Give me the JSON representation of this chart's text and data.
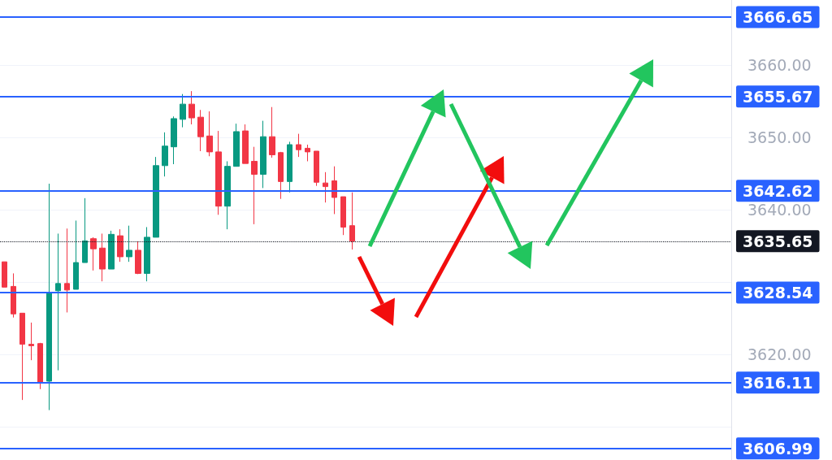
{
  "chart_data": {
    "type": "candlestick",
    "categories": [
      null,
      null,
      null,
      null,
      null,
      null,
      null,
      null,
      null,
      null,
      null,
      null,
      null,
      null,
      null,
      null,
      null,
      null,
      null,
      null,
      null,
      null,
      null,
      null,
      null,
      null,
      null,
      null,
      null,
      null,
      null,
      null,
      null,
      null,
      null,
      null,
      null,
      null,
      null,
      null,
      null,
      null,
      null,
      null,
      null,
      null,
      null,
      null,
      null,
      null,
      null,
      null,
      null,
      null,
      null,
      null,
      null,
      null,
      null,
      null,
      null,
      null,
      null,
      null,
      null,
      null,
      null,
      null,
      null,
      null,
      null,
      null,
      null,
      null,
      null,
      null,
      null,
      null,
      null,
      null,
      null,
      null
    ],
    "ohlc": [
      [
        3632.8,
        3632.8,
        3629.3,
        3629.3
      ],
      [
        3629.4,
        3631.2,
        3625.1,
        3625.6
      ],
      [
        3625.7,
        3625.7,
        3613.7,
        3621.4
      ],
      [
        3621.4,
        3624.4,
        3619.2,
        3621.2
      ],
      [
        3621.5,
        3621.6,
        3615.2,
        3616.1
      ],
      [
        3616.3,
        3643.6,
        3612.3,
        3628.5
      ],
      [
        3628.8,
        3636.7,
        3617.8,
        3629.8
      ],
      [
        3629.8,
        3637.4,
        3625.8,
        3628.9
      ],
      [
        3629.0,
        3638.5,
        3629.0,
        3632.7
      ],
      [
        3632.7,
        3641.6,
        3632.7,
        3635.7
      ],
      [
        3636.0,
        3636.2,
        3631.6,
        3634.6
      ],
      [
        3634.7,
        3636.7,
        3630.1,
        3631.8
      ],
      [
        3631.8,
        3637.1,
        3631.8,
        3636.6
      ],
      [
        3636.4,
        3637.3,
        3632.8,
        3633.5
      ],
      [
        3633.5,
        3637.8,
        3632.8,
        3634.4
      ],
      [
        3634.4,
        3635.6,
        3631.1,
        3631.2
      ],
      [
        3631.2,
        3637.6,
        3630.1,
        3636.2
      ],
      [
        3636.2,
        3647.3,
        3636.2,
        3646.1
      ],
      [
        3646.1,
        3650.7,
        3644.6,
        3648.8
      ],
      [
        3648.7,
        3652.9,
        3646.3,
        3652.6
      ],
      [
        3652.5,
        3656.0,
        3651.4,
        3654.6
      ],
      [
        3654.6,
        3656.4,
        3651.8,
        3652.7
      ],
      [
        3652.8,
        3653.8,
        3648.1,
        3650.1
      ],
      [
        3650.2,
        3653.6,
        3647.4,
        3648.0
      ],
      [
        3648.0,
        3650.9,
        3639.3,
        3640.5
      ],
      [
        3640.5,
        3646.7,
        3637.3,
        3646.0
      ],
      [
        3646.0,
        3651.9,
        3646.0,
        3650.8
      ],
      [
        3650.9,
        3651.8,
        3646.4,
        3646.4
      ],
      [
        3646.7,
        3648.7,
        3638.0,
        3644.9
      ],
      [
        3644.9,
        3652.3,
        3643.0,
        3650.1
      ],
      [
        3650.1,
        3654.2,
        3647.2,
        3647.6
      ],
      [
        3647.9,
        3648.0,
        3641.5,
        3643.9
      ],
      [
        3643.9,
        3649.4,
        3642.4,
        3649.0
      ],
      [
        3649.0,
        3650.5,
        3647.3,
        3648.3
      ],
      [
        3648.5,
        3649.0,
        3646.7,
        3648.0
      ],
      [
        3648.1,
        3648.1,
        3643.3,
        3643.8
      ],
      [
        3643.7,
        3645.2,
        3641.0,
        3643.2
      ],
      [
        3644.0,
        3646.0,
        3639.4,
        3641.7
      ],
      [
        3641.8,
        3641.8,
        3636.5,
        3637.6
      ],
      [
        3637.8,
        3642.4,
        3634.5,
        3635.65
      ],
      null,
      null,
      null,
      null,
      null,
      null,
      null,
      null,
      null,
      null,
      null,
      null,
      null,
      null,
      null,
      null,
      null,
      null,
      null,
      null,
      null,
      null,
      null,
      null,
      null,
      null,
      null,
      null,
      null,
      null,
      null,
      null,
      null,
      null,
      null,
      null,
      null,
      null,
      null,
      null,
      null,
      null
    ],
    "colors": [
      "#f23645",
      "#f23645",
      "#f23645",
      "#f23645",
      "#f23645",
      "#089981",
      "#089981",
      "#f23645",
      "#089981",
      "#089981",
      "#f23645",
      "#f23645",
      "#089981",
      "#f23645",
      "#089981",
      "#f23645",
      "#089981",
      "#089981",
      "#089981",
      "#089981",
      "#089981",
      "#f23645",
      "#f23645",
      "#f23645",
      "#f23645",
      "#089981",
      "#089981",
      "#f23645",
      "#f23645",
      "#089981",
      "#f23645",
      "#f23645",
      "#089981",
      "#f23645",
      "#f23645",
      "#f23645",
      "#f23645",
      "#f23645",
      "#f23645",
      "#f23645",
      null,
      null,
      null,
      null,
      null,
      null,
      null,
      null,
      null,
      null,
      null,
      null,
      null,
      null,
      null,
      null,
      null,
      null,
      null,
      null,
      null,
      null,
      null,
      null,
      null,
      null,
      null,
      null,
      null,
      null,
      null,
      null,
      null,
      null,
      null,
      null,
      null,
      null,
      null,
      null,
      null,
      null
    ],
    "ylim": [
      3605.4,
      3669.0
    ],
    "yticks": [
      {
        "value": 3610,
        "label": null
      },
      {
        "value": 3620,
        "label": "3620.00"
      },
      {
        "value": 3630,
        "label": null
      },
      {
        "value": 3640,
        "label": "3640.00"
      },
      {
        "value": 3650,
        "label": "3650.00"
      },
      {
        "value": 3660,
        "label": "3660.00"
      }
    ],
    "grid": "y",
    "tick_labels": "y",
    "ref_lines": [
      {
        "axis": "y",
        "value": 3666.65,
        "label": "3666.65",
        "color": "#2962ff",
        "line_style": "solid"
      },
      {
        "axis": "y",
        "value": 3655.67,
        "label": "3655.67",
        "color": "#2962ff",
        "line_style": "solid"
      },
      {
        "axis": "y",
        "value": 3642.62,
        "label": "3642.62",
        "color": "#2962ff",
        "line_style": "solid"
      },
      {
        "axis": "y",
        "value": 3635.65,
        "label": "3635.65",
        "color": "#131722",
        "line_style": "dotted"
      },
      {
        "axis": "y",
        "value": 3628.54,
        "label": "3628.54",
        "color": "#2962ff",
        "line_style": "solid"
      },
      {
        "axis": "y",
        "value": 3616.11,
        "label": "3616.11",
        "color": "#2962ff",
        "line_style": "solid"
      },
      {
        "axis": "y",
        "value": 3606.99,
        "label": "3606.99",
        "color": "#2962ff",
        "line_style": "solid"
      }
    ]
  }
}
